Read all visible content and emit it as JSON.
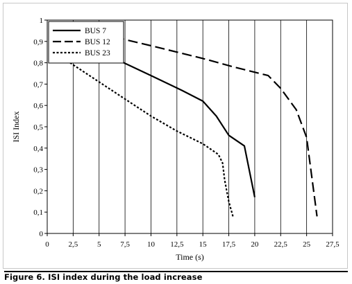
{
  "chart_data": {
    "type": "line",
    "title": "",
    "xlabel": "Time (s)",
    "ylabel": "ISI Index",
    "xlim": [
      0,
      27.5
    ],
    "ylim": [
      0,
      1
    ],
    "x_ticks": [
      "0",
      "2,5",
      "5",
      "7,5",
      "10",
      "12,5",
      "15",
      "17,5",
      "20",
      "22,5",
      "25",
      "27,5"
    ],
    "y_ticks": [
      "0",
      "0,1",
      "0,2",
      "0,3",
      "0,4",
      "0,5",
      "0,6",
      "0,7",
      "0,8",
      "0,9",
      "1"
    ],
    "grid": "vertical",
    "legend_position": "top-left",
    "series": [
      {
        "name": "BUS 7",
        "style": "solid",
        "x": [
          6.5,
          10,
          13,
          15,
          16.3,
          17.5,
          19,
          20
        ],
        "y": [
          0.82,
          0.74,
          0.67,
          0.62,
          0.55,
          0.46,
          0.41,
          0.17
        ]
      },
      {
        "name": "BUS 12",
        "style": "dashed",
        "x": [
          6.5,
          10,
          15,
          18,
          21.3,
          22.5,
          24,
          25,
          26
        ],
        "y": [
          0.92,
          0.88,
          0.82,
          0.78,
          0.74,
          0.68,
          0.58,
          0.45,
          0.08
        ]
      },
      {
        "name": "BUS 23",
        "style": "dotted",
        "x": [
          2.2,
          5,
          7.5,
          10,
          12.5,
          15,
          16.5,
          16.9,
          17.1,
          17.5,
          17.9
        ],
        "y": [
          0.8,
          0.71,
          0.63,
          0.55,
          0.48,
          0.42,
          0.37,
          0.33,
          0.25,
          0.15,
          0.08
        ]
      }
    ]
  },
  "caption": "Figure 6. ISI index during the load increase"
}
